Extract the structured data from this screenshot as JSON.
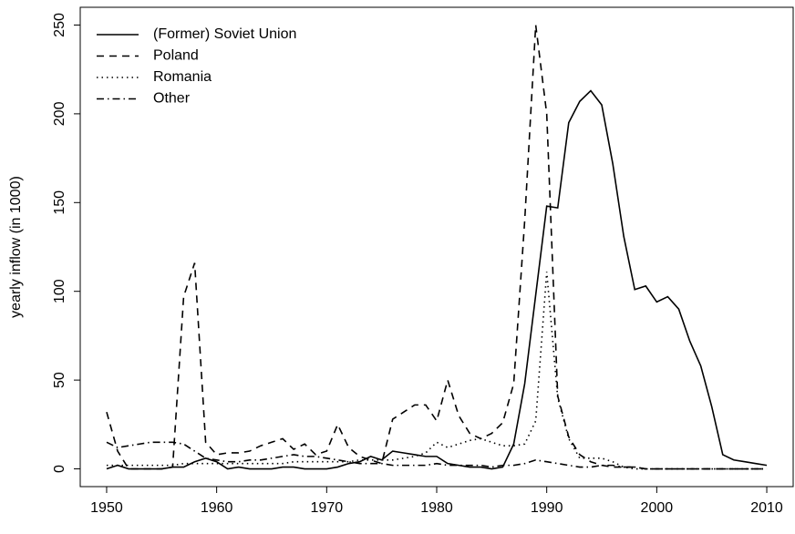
{
  "chart_data": {
    "type": "line",
    "y_label": "yearly inflow (in 1000)",
    "x": [
      1950,
      1951,
      1952,
      1953,
      1954,
      1955,
      1956,
      1957,
      1958,
      1959,
      1960,
      1961,
      1962,
      1963,
      1964,
      1965,
      1966,
      1967,
      1968,
      1969,
      1970,
      1971,
      1972,
      1973,
      1974,
      1975,
      1976,
      1977,
      1978,
      1979,
      1980,
      1981,
      1982,
      1983,
      1984,
      1985,
      1986,
      1987,
      1988,
      1989,
      1990,
      1991,
      1992,
      1993,
      1994,
      1995,
      1996,
      1997,
      1998,
      1999,
      2000,
      2001,
      2002,
      2003,
      2004,
      2005,
      2006,
      2007,
      2008,
      2009,
      2010
    ],
    "series": [
      {
        "name": "(Former) Soviet Union",
        "color": "#000000",
        "dash": "none",
        "values": [
          0,
          2,
          0,
          0,
          0,
          0,
          1,
          1,
          4,
          6,
          4,
          0,
          1,
          0,
          0,
          0,
          1,
          1,
          0,
          0,
          0,
          1,
          3,
          4,
          7,
          5,
          10,
          9,
          8,
          7,
          7,
          3,
          2,
          1,
          1,
          0,
          1,
          14,
          48,
          98,
          148,
          147,
          195,
          207,
          213,
          205,
          172,
          131,
          101,
          103,
          94,
          97,
          90,
          72,
          58,
          35,
          8,
          5,
          4,
          3,
          2
        ]
      },
      {
        "name": "Poland",
        "color": "#000000",
        "dash": "8,6",
        "values": [
          32,
          10,
          0,
          0,
          0,
          0,
          1,
          97,
          116,
          15,
          8,
          9,
          9,
          10,
          13,
          15,
          17,
          11,
          14,
          8,
          10,
          25,
          12,
          7,
          5,
          3,
          28,
          32,
          36,
          36,
          27,
          50,
          30,
          20,
          17,
          20,
          26,
          48,
          140,
          250,
          200,
          41,
          18,
          8,
          4,
          2,
          1,
          1,
          1,
          0,
          0,
          0,
          0,
          0,
          0,
          0,
          0,
          0,
          0,
          0,
          0
        ]
      },
      {
        "name": "Romania",
        "color": "#000000",
        "dash": "1.5,4",
        "values": [
          2,
          2,
          2,
          2,
          2,
          2,
          2,
          3,
          3,
          3,
          3,
          3,
          3,
          3,
          3,
          3,
          3,
          4,
          4,
          4,
          4,
          4,
          4,
          5,
          5,
          5,
          5,
          6,
          7,
          9,
          15,
          12,
          14,
          16,
          17,
          15,
          13,
          13,
          14,
          27,
          111,
          40,
          17,
          6,
          6,
          6,
          4,
          1,
          0,
          0,
          0,
          0,
          0,
          0,
          0,
          0,
          0,
          0,
          0,
          0,
          0
        ]
      },
      {
        "name": "Other",
        "color": "#000000",
        "dash": "8,4,1.5,4",
        "values": [
          15,
          12,
          13,
          14,
          15,
          15,
          15,
          14,
          10,
          6,
          5,
          4,
          4,
          5,
          5,
          6,
          7,
          8,
          7,
          7,
          6,
          5,
          4,
          3,
          3,
          3,
          2,
          2,
          2,
          2,
          3,
          2,
          2,
          2,
          2,
          1,
          2,
          2,
          3,
          5,
          4,
          3,
          2,
          1,
          1,
          2,
          2,
          1,
          1,
          0,
          0,
          0,
          0,
          0,
          0,
          0,
          0,
          0,
          0,
          0,
          0
        ]
      }
    ],
    "xlim": [
      1947.6,
      2012.4
    ],
    "xticks": [
      1950,
      1960,
      1970,
      1980,
      1990,
      2000,
      2010
    ],
    "ylim": [
      -10,
      260
    ],
    "yticks": [
      0,
      50,
      100,
      150,
      200,
      250
    ],
    "legend": "top-left"
  }
}
